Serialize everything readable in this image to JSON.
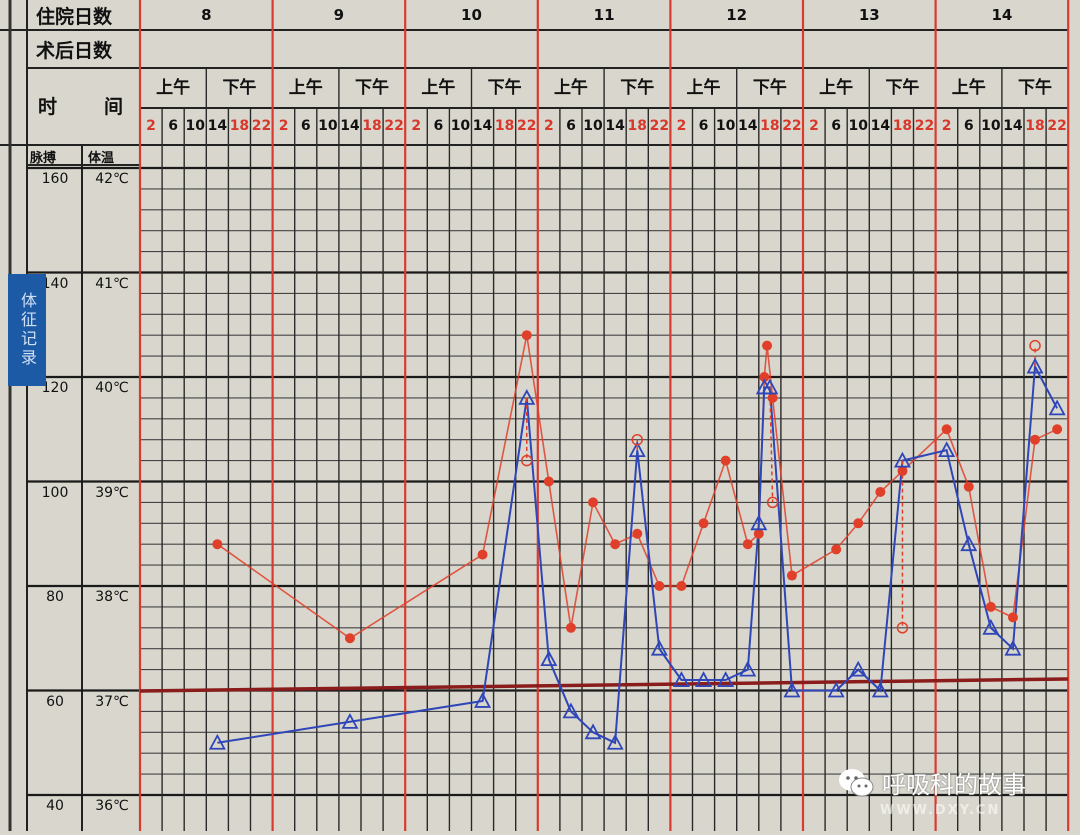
{
  "header": {
    "hospital_days_label": "住院日数",
    "postop_days_label": "术后日数",
    "time_label_1": "时",
    "time_label_2": "间",
    "pulse_label": "脉搏",
    "temp_label": "体温",
    "am_label": "上午",
    "pm_label": "下午",
    "days": [
      "8",
      "9",
      "10",
      "11",
      "12",
      "13",
      "14"
    ],
    "hours": [
      "2",
      "6",
      "10",
      "14",
      "18",
      "22"
    ],
    "red_hours": [
      "2",
      "18",
      "22"
    ]
  },
  "sidebar_tab": {
    "label": "体征记录"
  },
  "watermark": {
    "text": "呼吸科的故事",
    "url": "WWW.DXY.CN",
    "icon": "wechat-icon"
  },
  "colors": {
    "temperature": "#2f46b8",
    "pulse": "#e0402a",
    "day_divider": "#d83a30",
    "baseline_37": "#8a1c1c"
  },
  "chart_data": {
    "type": "line",
    "x_categories": "day / hour (2,6,10,14,18,22)",
    "y_axes": {
      "pulse_ticks": [
        "160",
        "140",
        "120",
        "100",
        "80",
        "60",
        "40"
      ],
      "temp_ticks": [
        "42℃",
        "41℃",
        "40℃",
        "39℃",
        "38℃",
        "37℃",
        "36℃"
      ],
      "pulse_range": [
        40,
        160
      ],
      "temp_range": [
        36,
        42
      ]
    },
    "grid": true,
    "reference_line": {
      "temp": 37
    },
    "series": [
      {
        "key": "temperature",
        "marker": "triangle-open",
        "points": [
          [
            8,
            14,
            36.5
          ],
          [
            9,
            14,
            36.7
          ],
          [
            10,
            14,
            36.9
          ],
          [
            10,
            22,
            39.8
          ],
          [
            11,
            2,
            37.3
          ],
          [
            11,
            6,
            36.8
          ],
          [
            11,
            10,
            36.6
          ],
          [
            11,
            14,
            36.5
          ],
          [
            11,
            18,
            39.3
          ],
          [
            11,
            22,
            37.4
          ],
          [
            12,
            2,
            37.1
          ],
          [
            12,
            6,
            37.1
          ],
          [
            12,
            10,
            37.1
          ],
          [
            12,
            14,
            37.2
          ],
          [
            12,
            16,
            38.6
          ],
          [
            12,
            17,
            39.9
          ],
          [
            12,
            18,
            39.9
          ],
          [
            12,
            22,
            37.0
          ],
          [
            13,
            6,
            37.0
          ],
          [
            13,
            10,
            37.2
          ],
          [
            13,
            14,
            37.0
          ],
          [
            13,
            18,
            39.2
          ],
          [
            14,
            2,
            39.3
          ],
          [
            14,
            6,
            38.4
          ],
          [
            14,
            10,
            37.6
          ],
          [
            14,
            14,
            37.4
          ],
          [
            14,
            18,
            40.1
          ],
          [
            14,
            22,
            39.7
          ]
        ]
      },
      {
        "key": "pulse",
        "marker": "dot-filled",
        "points": [
          [
            8,
            14,
            88
          ],
          [
            9,
            14,
            70
          ],
          [
            10,
            14,
            86
          ],
          [
            10,
            22,
            128
          ],
          [
            11,
            2,
            100
          ],
          [
            11,
            6,
            72
          ],
          [
            11,
            10,
            96
          ],
          [
            11,
            14,
            88
          ],
          [
            11,
            18,
            90
          ],
          [
            11,
            22,
            80
          ],
          [
            12,
            2,
            80
          ],
          [
            12,
            6,
            92
          ],
          [
            12,
            10,
            104
          ],
          [
            12,
            14,
            88
          ],
          [
            12,
            16,
            90
          ],
          [
            12,
            17,
            120
          ],
          [
            12,
            17.5,
            126
          ],
          [
            12,
            18.5,
            116
          ],
          [
            12,
            22,
            82
          ],
          [
            13,
            6,
            87
          ],
          [
            13,
            10,
            92
          ],
          [
            13,
            14,
            98
          ],
          [
            13,
            18,
            102
          ],
          [
            14,
            2,
            110
          ],
          [
            14,
            6,
            99
          ],
          [
            14,
            10,
            76
          ],
          [
            14,
            14,
            74
          ],
          [
            14,
            18,
            108
          ],
          [
            14,
            22,
            110
          ]
        ]
      },
      {
        "key": "cooled_temperature",
        "marker": "circle-open",
        "points": [
          [
            10,
            22,
            39.2
          ],
          [
            11,
            18,
            39.4
          ],
          [
            12,
            18.5,
            38.8
          ],
          [
            13,
            18,
            37.6
          ],
          [
            14,
            18,
            40.3
          ]
        ]
      }
    ]
  }
}
